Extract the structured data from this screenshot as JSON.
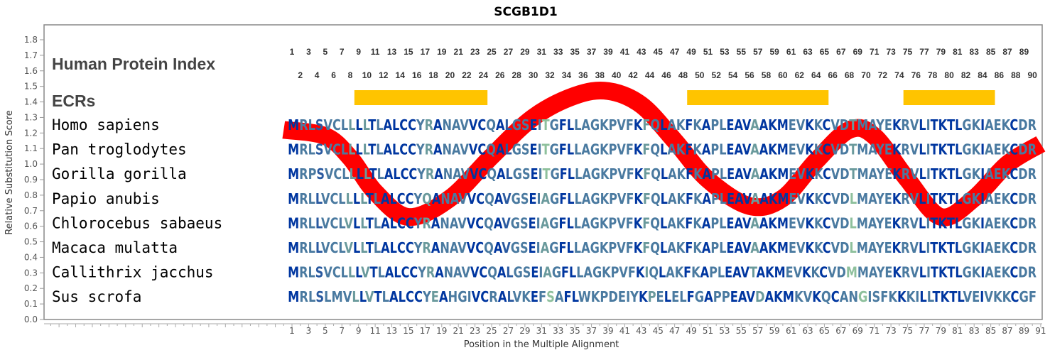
{
  "chart_data": {
    "type": "line",
    "title": "SCGB1D1",
    "xlabel": "Position in the Multiple Alignment",
    "ylabel": "Relative Substitution Score",
    "xlim": [
      -29,
      91
    ],
    "ylim": [
      0.0,
      1.9
    ],
    "yticks": [
      "0.0",
      "0.1",
      "0.2",
      "0.3",
      "0.4",
      "0.5",
      "0.6",
      "0.7",
      "0.8",
      "0.9",
      "1.0",
      "1.1",
      "1.2",
      "1.3",
      "1.4",
      "1.5",
      "1.6",
      "1.7",
      "1.8"
    ],
    "xtick_labels_odd_from": 1,
    "xtick_labels_to": 91,
    "grid": false,
    "series": [
      {
        "color": "#ff0000",
        "points": [
          [
            0,
            1.22
          ],
          [
            5,
            1.18
          ],
          [
            8,
            1.04
          ],
          [
            11,
            0.82
          ],
          [
            15,
            0.66
          ],
          [
            20,
            0.78
          ],
          [
            25,
            1.05
          ],
          [
            30,
            1.3
          ],
          [
            35,
            1.44
          ],
          [
            39,
            1.47
          ],
          [
            43,
            1.38
          ],
          [
            47,
            1.15
          ],
          [
            51,
            0.9
          ],
          [
            56,
            0.73
          ],
          [
            60,
            0.78
          ],
          [
            64,
            1.02
          ],
          [
            68,
            1.22
          ],
          [
            71,
            1.18
          ],
          [
            75,
            0.9
          ],
          [
            79,
            0.66
          ],
          [
            83,
            0.78
          ],
          [
            87,
            1.0
          ],
          [
            91,
            1.13
          ]
        ]
      }
    ],
    "sections": {
      "index": "Human Protein Index",
      "ecrs": "ECRs"
    },
    "human_protein_index_max": 90,
    "ecrs": [
      [
        9,
        24
      ],
      [
        49,
        65
      ],
      [
        75,
        85
      ]
    ],
    "ecr_color": "#ffc400",
    "alignment": [
      {
        "species": "Homo sapiens",
        "seq": "MRLSVCLLLLTLALCCYRANAVVCQALGSEITGFLLAGKPVFKFQLAKFKAPLEAVAAKMEVKKCVDTMAYEKRVLITKTLGKIAEKCDR"
      },
      {
        "species": "Pan troglodytes",
        "seq": "MRLSVCLLLLTLALCCYRANAVVCQALGSEITGFLLAGKPVFKFQLAKFKAPLEAVAAKMEVKKCVDTMAYEKRVLITKTLGKIAEKCDR"
      },
      {
        "species": "Gorilla gorilla",
        "seq": "MRPSVCLLLLTLALCCYRANAVVCQALGSEITGFLLAGKPVFKFQLAKFKAPLEAVAAKMEVKKCVDTMAYEKRVLITKTLGKIAEKCDR"
      },
      {
        "species": "Papio anubis",
        "seq": "MRLLVCLLLLTLALCCYQANAVVCQAVGSEIAGFLLAGKPVFKFQLAKFKAPLEAVAAKMEVKKCVDLMAYEKRVLITKTLGKIAEKCDR"
      },
      {
        "species": "Chlorocebus sabaeus",
        "seq": "MRLLVCLVLLTLALCCYRANAVVCQAVGSEIAGFLLAGKPVFKFQLAKFKAPLEAVAAKMEVKKCVDLMAYEKRVLITKTLGKIAEKCDR"
      },
      {
        "species": "Macaca mulatta",
        "seq": "MRLLVCLVLLTLALCCYRANAVVCQAVGSEIAGFLLAGKPVFKFQLAKFKAPLEAVAAKMEVKKCVDLMAYEKRVLITKTLGKIAEKCDR"
      },
      {
        "species": "Callithrix jacchus",
        "seq": "MRLSVCLLLVTLALCCYRANAVVCQALGSEIAGFLLAGKPVFKIQLAKFKAPLEAVTAKMEVKKCVDMMAYEKRVLITKTLGKIAEKCDR"
      },
      {
        "species": "Sus scrofa",
        "seq": "MRLSLMVLLVTLALCCYEAHGIVCRALVKEFSAFLWKPDEIYKPELELFGAPPEAVDAKMKVKQCANGISFKKKILLTKTLVEIVKKCGF"
      }
    ],
    "residue_palette": [
      "#0036a0",
      "#2a5aa0",
      "#4a7aa0",
      "#6a9a9c",
      "#8ec09c"
    ]
  }
}
